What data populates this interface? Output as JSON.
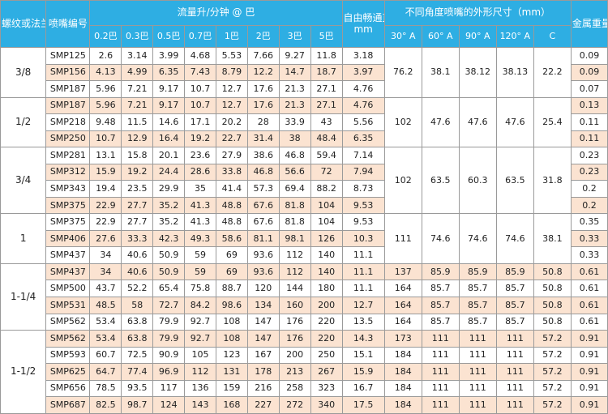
{
  "headers": {
    "size": "螺纹或法兰尺寸",
    "model": "喷嘴编号",
    "flow": "流量升/分钟 @ 巴",
    "bore": "自由畅通直径",
    "bore_unit": "mm",
    "dims": "不同角度喷嘴的外形尺寸（mm）",
    "weight": "金属重量(Kg)"
  },
  "pressures": [
    "0.2巴",
    "0.3巴",
    "0.5巴",
    "0.7巴",
    "1巴",
    "2巴",
    "3巴",
    "5巴"
  ],
  "dim_cols": [
    "30° A",
    "60° A",
    "90° A",
    "120° A",
    "C"
  ],
  "groups": [
    {
      "size": "3/8",
      "dims": [
        "76.2",
        "38.1",
        "38.12",
        "38.13",
        "22.2"
      ],
      "dims_row": 0,
      "rows": [
        {
          "model": "SMP125",
          "flows": [
            "2.6",
            "3.14",
            "3.99",
            "4.68",
            "5.53",
            "7.66",
            "9.27",
            "11.8"
          ],
          "bore": "3.18",
          "weight": "0.09",
          "tone": "white"
        },
        {
          "model": "SMP156",
          "flows": [
            "4.13",
            "4.99",
            "6.35",
            "7.43",
            "8.79",
            "12.2",
            "14.7",
            "18.7"
          ],
          "bore": "3.97",
          "weight": "0.09",
          "tone": "peach"
        },
        {
          "model": "SMP187",
          "flows": [
            "5.96",
            "7.21",
            "9.17",
            "10.7",
            "12.7",
            "17.6",
            "21.3",
            "27.1"
          ],
          "bore": "4.76",
          "weight": "0.07",
          "tone": "white"
        }
      ]
    },
    {
      "size": "1/2",
      "dims": [
        "102",
        "47.6",
        "47.6",
        "47.6",
        "25.4"
      ],
      "dims_row": 0,
      "rows": [
        {
          "model": "SMP187",
          "flows": [
            "5.96",
            "7.21",
            "9.17",
            "10.7",
            "12.7",
            "17.6",
            "21.3",
            "27.1"
          ],
          "bore": "4.76",
          "weight": "0.13",
          "tone": "peach"
        },
        {
          "model": "SMP218",
          "flows": [
            "9.48",
            "11.5",
            "14.6",
            "17.1",
            "20.2",
            "28",
            "33.9",
            "43"
          ],
          "bore": "5.56",
          "weight": "0.11",
          "tone": "white"
        },
        {
          "model": "SMP250",
          "flows": [
            "10.7",
            "12.9",
            "16.4",
            "19.2",
            "22.7",
            "31.4",
            "38",
            "48.4"
          ],
          "bore": "6.35",
          "weight": "0.11",
          "tone": "peach"
        }
      ]
    },
    {
      "size": "3/4",
      "dims": [
        "102",
        "63.5",
        "60.3",
        "63.5",
        "31.8"
      ],
      "dims_row": 0,
      "rows": [
        {
          "model": "SMP281",
          "flows": [
            "13.1",
            "15.8",
            "20.1",
            "23.6",
            "27.9",
            "38.6",
            "46.8",
            "59.4"
          ],
          "bore": "7.14",
          "weight": "0.23",
          "tone": "white"
        },
        {
          "model": "SMP312",
          "flows": [
            "15.9",
            "19.2",
            "24.4",
            "28.6",
            "33.8",
            "46.8",
            "56.6",
            "72"
          ],
          "bore": "7.94",
          "weight": "0.23",
          "tone": "peach"
        },
        {
          "model": "SMP343",
          "flows": [
            "19.4",
            "23.5",
            "29.9",
            "35",
            "41.4",
            "57.3",
            "69.4",
            "88.2"
          ],
          "bore": "8.73",
          "weight": "0.2",
          "tone": "white"
        },
        {
          "model": "SMP375",
          "flows": [
            "22.9",
            "27.7",
            "35.2",
            "41.3",
            "48.8",
            "67.6",
            "81.8",
            "104"
          ],
          "bore": "9.53",
          "weight": "0.2",
          "tone": "peach"
        }
      ]
    },
    {
      "size": "1",
      "dims": [
        "111",
        "74.6",
        "74.6",
        "74.6",
        "38.1"
      ],
      "dims_row": 0,
      "rows": [
        {
          "model": "SMP375",
          "flows": [
            "22.9",
            "27.7",
            "35.2",
            "41.3",
            "48.8",
            "67.6",
            "81.8",
            "104"
          ],
          "bore": "9.53",
          "weight": "0.35",
          "tone": "white"
        },
        {
          "model": "SMP406",
          "flows": [
            "27.6",
            "33.3",
            "42.3",
            "49.3",
            "58.6",
            "81.1",
            "98.1",
            "126"
          ],
          "bore": "10.3",
          "weight": "0.33",
          "tone": "peach"
        },
        {
          "model": "SMP437",
          "flows": [
            "34",
            "40.6",
            "50.9",
            "59",
            "69",
            "93.6",
            "112",
            "140"
          ],
          "bore": "11.1",
          "weight": "0.33",
          "tone": "white"
        }
      ]
    },
    {
      "size": "1-1/4",
      "rows": [
        {
          "model": "SMP437",
          "flows": [
            "34",
            "40.6",
            "50.9",
            "59",
            "69",
            "93.6",
            "112",
            "140"
          ],
          "bore": "11.1",
          "dims": [
            "137",
            "85.9",
            "85.9",
            "85.9",
            "50.8"
          ],
          "weight": "0.61",
          "tone": "peach"
        },
        {
          "model": "SMP500",
          "flows": [
            "43.7",
            "52.2",
            "65.4",
            "75.8",
            "88.7",
            "120",
            "144",
            "180"
          ],
          "bore": "11.1",
          "dims": [
            "164",
            "85.7",
            "85.7",
            "85.7",
            "50.8"
          ],
          "weight": "0.61",
          "tone": "white"
        },
        {
          "model": "SMP531",
          "flows": [
            "48.5",
            "58",
            "72.7",
            "84.2",
            "98.6",
            "134",
            "160",
            "200"
          ],
          "bore": "12.7",
          "dims": [
            "164",
            "85.7",
            "85.7",
            "85.7",
            "50.8"
          ],
          "weight": "0.61",
          "tone": "peach"
        },
        {
          "model": "SMP562",
          "flows": [
            "53.4",
            "63.8",
            "79.9",
            "92.7",
            "108",
            "147",
            "176",
            "220"
          ],
          "bore": "13.5",
          "dims": [
            "164",
            "85.7",
            "85.7",
            "85.7",
            "50.8"
          ],
          "weight": "0.61",
          "tone": "white"
        }
      ]
    },
    {
      "size": "1-1/2",
      "rows": [
        {
          "model": "SMP562",
          "flows": [
            "53.4",
            "63.8",
            "79.9",
            "92.7",
            "108",
            "147",
            "176",
            "220"
          ],
          "bore": "14.3",
          "dims": [
            "173",
            "111",
            "111",
            "111",
            "57.2"
          ],
          "weight": "0.91",
          "tone": "peach"
        },
        {
          "model": "SMP593",
          "flows": [
            "60.7",
            "72.5",
            "90.9",
            "105",
            "123",
            "167",
            "200",
            "250"
          ],
          "bore": "15.1",
          "dims": [
            "184",
            "111",
            "111",
            "111",
            "57.2"
          ],
          "weight": "0.91",
          "tone": "white"
        },
        {
          "model": "SMP625",
          "flows": [
            "64.7",
            "77.4",
            "96.9",
            "112",
            "131",
            "178",
            "213",
            "267"
          ],
          "bore": "15.9",
          "dims": [
            "184",
            "111",
            "111",
            "111",
            "57.2"
          ],
          "weight": "0.91",
          "tone": "peach"
        },
        {
          "model": "SMP656",
          "flows": [
            "78.5",
            "93.5",
            "117",
            "136",
            "159",
            "216",
            "258",
            "323"
          ],
          "bore": "16.7",
          "dims": [
            "184",
            "111",
            "111",
            "111",
            "57.2"
          ],
          "weight": "0.91",
          "tone": "white"
        },
        {
          "model": "SMP687",
          "flows": [
            "82.5",
            "98.7",
            "124",
            "143",
            "168",
            "227",
            "272",
            "340"
          ],
          "bore": "17.5",
          "dims": [
            "184",
            "111",
            "111",
            "111",
            "57.2"
          ],
          "weight": "0.91",
          "tone": "peach"
        }
      ]
    }
  ]
}
